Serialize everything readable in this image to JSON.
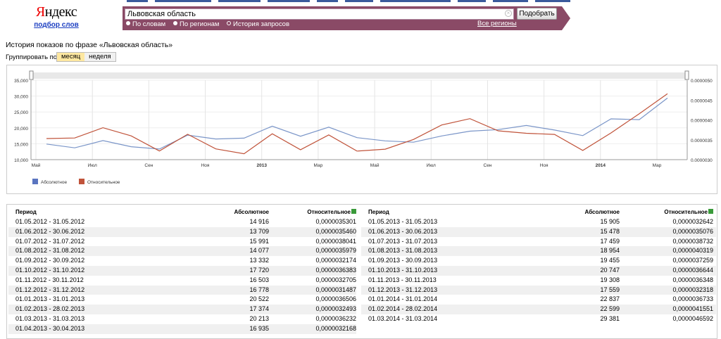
{
  "header": {
    "logo_text": "Яндекс",
    "logo_sub": "подбор слов",
    "search_value": "Львовская область",
    "search_button": "Подобрать",
    "radios": [
      "По словам",
      "По регионам",
      "История запросов"
    ],
    "regions_link": "Все регионы"
  },
  "page": {
    "heading": "История показов по фразе «Львовская область»",
    "group_label": "Группировать по:",
    "group_month": "месяц",
    "group_week": "неделя"
  },
  "colors": {
    "absolute": "#7a95c8",
    "relative": "#c0533a",
    "brand_bar": "#8a4a66"
  },
  "chart_data": {
    "type": "line",
    "x": [
      "05.2012",
      "06.2012",
      "07.2012",
      "08.2012",
      "09.2012",
      "10.2012",
      "11.2012",
      "12.2012",
      "01.2013",
      "02.2013",
      "03.2013",
      "04.2013",
      "05.2013",
      "06.2013",
      "07.2013",
      "08.2013",
      "09.2013",
      "10.2013",
      "11.2013",
      "12.2013",
      "01.2014",
      "02.2014",
      "03.2014"
    ],
    "x_tick_labels": [
      "Май",
      "Июл",
      "Сен",
      "Ноя",
      "2013",
      "Мар",
      "Май",
      "Июл",
      "Сен",
      "Ноя",
      "2014",
      "Мар"
    ],
    "y_left_ticks": [
      "35,000",
      "30,000",
      "25,000",
      "20,000",
      "15,000",
      "10,000"
    ],
    "y_right_ticks": [
      "0.0000050",
      "0.0000045",
      "0.0000040",
      "0.0000035",
      "0.0000030"
    ],
    "ylim_left": [
      10000,
      35000
    ],
    "ylim_right": [
      3e-06,
      5e-06
    ],
    "grid": true,
    "legend_position": "bottom-left",
    "series": [
      {
        "name": "Абсолютное",
        "axis": "left",
        "values": [
          14916,
          13709,
          15991,
          14077,
          13332,
          17720,
          16503,
          16778,
          20522,
          17374,
          20213,
          16935,
          15905,
          15478,
          17459,
          18954,
          19455,
          20747,
          19308,
          17559,
          22837,
          22599,
          29381
        ]
      },
      {
        "name": "Относительное",
        "axis": "right",
        "values": [
          3.5301e-06,
          3.546e-06,
          3.8041e-06,
          3.5979e-06,
          3.2174e-06,
          3.6383e-06,
          3.2705e-06,
          3.1487e-06,
          3.6506e-06,
          3.2493e-06,
          3.6232e-06,
          3.2168e-06,
          3.2642e-06,
          3.5076e-06,
          3.8732e-06,
          4.0319e-06,
          3.7259e-06,
          3.6644e-06,
          3.6348e-06,
          3.2318e-06,
          3.6733e-06,
          4.1551e-06,
          4.6592e-06
        ]
      }
    ]
  },
  "table": {
    "headers": {
      "period": "Период",
      "absolute": "Абсолютное",
      "relative": "Относительное"
    },
    "left": [
      [
        "01.05.2012 - 31.05.2012",
        "14 916",
        "0,0000035301"
      ],
      [
        "01.06.2012 - 30.06.2012",
        "13 709",
        "0,0000035460"
      ],
      [
        "01.07.2012 - 31.07.2012",
        "15 991",
        "0,0000038041"
      ],
      [
        "01.08.2012 - 31.08.2012",
        "14 077",
        "0,0000035979"
      ],
      [
        "01.09.2012 - 30.09.2012",
        "13 332",
        "0,0000032174"
      ],
      [
        "01.10.2012 - 31.10.2012",
        "17 720",
        "0,0000036383"
      ],
      [
        "01.11.2012 - 30.11.2012",
        "16 503",
        "0,0000032705"
      ],
      [
        "01.12.2012 - 31.12.2012",
        "16 778",
        "0,0000031487"
      ],
      [
        "01.01.2013 - 31.01.2013",
        "20 522",
        "0,0000036506"
      ],
      [
        "01.02.2013 - 28.02.2013",
        "17 374",
        "0,0000032493"
      ],
      [
        "01.03.2013 - 31.03.2013",
        "20 213",
        "0,0000036232"
      ],
      [
        "01.04.2013 - 30.04.2013",
        "16 935",
        "0,0000032168"
      ]
    ],
    "right": [
      [
        "01.05.2013 - 31.05.2013",
        "15 905",
        "0,0000032642"
      ],
      [
        "01.06.2013 - 30.06.2013",
        "15 478",
        "0,0000035076"
      ],
      [
        "01.07.2013 - 31.07.2013",
        "17 459",
        "0,0000038732"
      ],
      [
        "01.08.2013 - 31.08.2013",
        "18 954",
        "0,0000040319"
      ],
      [
        "01.09.2013 - 30.09.2013",
        "19 455",
        "0,0000037259"
      ],
      [
        "01.10.2013 - 31.10.2013",
        "20 747",
        "0,0000036644"
      ],
      [
        "01.11.2013 - 30.11.2013",
        "19 308",
        "0,0000036348"
      ],
      [
        "01.12.2013 - 31.12.2013",
        "17 559",
        "0,0000032318"
      ],
      [
        "01.01.2014 - 31.01.2014",
        "22 837",
        "0,0000036733"
      ],
      [
        "01.02.2014 - 28.02.2014",
        "22 599",
        "0,0000041551"
      ],
      [
        "01.03.2014 - 31.03.2014",
        "29 381",
        "0,0000046592"
      ]
    ]
  }
}
